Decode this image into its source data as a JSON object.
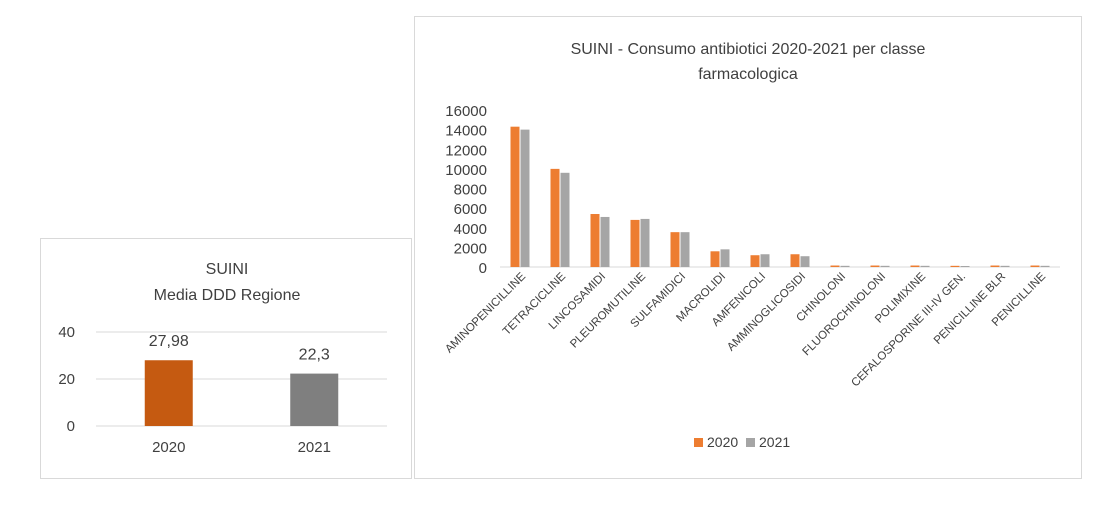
{
  "chart_data": [
    {
      "type": "bar",
      "title": "SUINI",
      "subtitle": "Media DDD Regione",
      "categories": [
        "2020",
        "2021"
      ],
      "values": [
        27.98,
        22.3
      ],
      "value_labels": [
        "27,98",
        "22,3"
      ],
      "bar_colors": [
        "#c55a11",
        "#7f7f7f"
      ],
      "ylim": [
        0,
        40
      ],
      "yticks": [
        "0",
        "20",
        "40"
      ],
      "grid": true,
      "legend": "none"
    },
    {
      "type": "bar",
      "title": "SUINI - Consumo antibiotici 2020-2021 per classe farmacologica",
      "title_lines": [
        "SUINI - Consumo antibiotici 2020-2021 per classe",
        "farmacologica"
      ],
      "categories": [
        "AMINOPENICILLINE",
        "TETRACICLINE",
        "LINCOSAMIDI",
        "PLEUROMUTILINE",
        "SULFAMIDICI",
        "MACROLIDI",
        "AMFENICOLI",
        "AMMINOGLICOSIDI",
        "CHINOLONI",
        "FLUOROCHINOLONI",
        "POLIMIXINE",
        "CEFALOSPORINE III-IV GEN.",
        "PENICILLINE BLR",
        "PENICILLINE"
      ],
      "series": [
        {
          "name": "2020",
          "color": "#ed7d31",
          "values": [
            14300,
            10000,
            5400,
            4800,
            3550,
            1600,
            1200,
            1300,
            150,
            150,
            150,
            120,
            150,
            150
          ]
        },
        {
          "name": "2021",
          "color": "#a5a5a5",
          "values": [
            14000,
            9600,
            5100,
            4900,
            3550,
            1800,
            1300,
            1100,
            120,
            120,
            120,
            100,
            120,
            120
          ]
        }
      ],
      "ylim": [
        0,
        16000
      ],
      "yticks": [
        "0",
        "2000",
        "4000",
        "6000",
        "8000",
        "10000",
        "12000",
        "14000",
        "16000"
      ],
      "grid": false,
      "legend": "bottom"
    }
  ]
}
